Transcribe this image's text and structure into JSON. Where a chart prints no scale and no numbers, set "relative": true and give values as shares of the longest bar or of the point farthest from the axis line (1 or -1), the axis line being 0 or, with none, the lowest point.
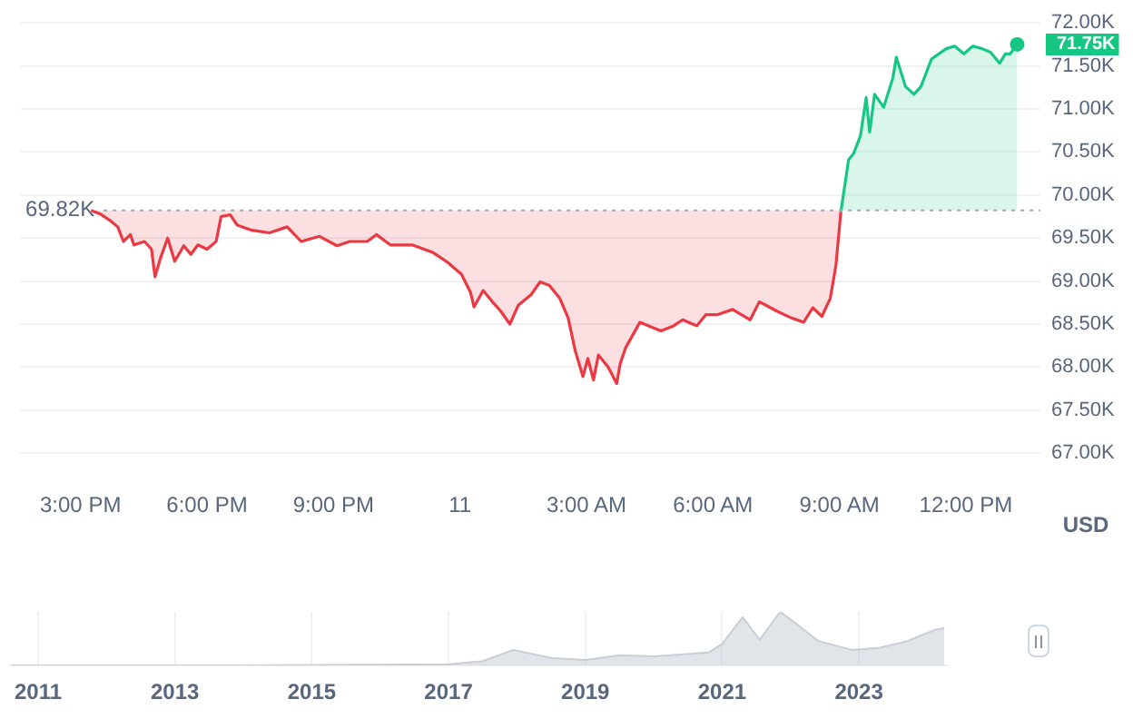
{
  "chart_data": [
    {
      "type": "line",
      "ylabel": "USD",
      "x": [
        "--03-10T15:15",
        "--03-10T15:28",
        "--03-10T15:41",
        "--03-10T15:53",
        "--03-10T16:01",
        "--03-10T16:11",
        "--03-10T16:16",
        "--03-10T16:31",
        "--03-10T16:41",
        "--03-10T16:46",
        "--03-10T16:54",
        "--03-10T17:04",
        "--03-10T17:14",
        "--03-10T17:27",
        "--03-10T17:37",
        "--03-10T17:47",
        "--03-10T18:00",
        "--03-10T18:13",
        "--03-10T18:20",
        "--03-10T18:33",
        "--03-10T18:43",
        "--03-10T19:04",
        "--03-10T19:29",
        "--03-10T19:54",
        "--03-10T20:14",
        "--03-10T20:40",
        "--03-10T21:05",
        "--03-10T21:23",
        "--03-10T21:48",
        "--03-10T22:01",
        "--03-10T22:21",
        "--03-10T22:52",
        "--03-10T23:22",
        "--03-10T23:42",
        "--03-11T00:02",
        "--03-11T00:15",
        "--03-11T00:20",
        "--03-11T00:33",
        "--03-11T00:46",
        "--03-11T00:58",
        "--03-11T01:11",
        "--03-11T01:23",
        "--03-11T01:41",
        "--03-11T01:54",
        "--03-11T02:07",
        "--03-11T02:22",
        "--03-11T02:34",
        "--03-11T02:44",
        "--03-11T02:55",
        "--03-11T03:02",
        "--03-11T03:10",
        "--03-11T03:17",
        "--03-11T03:31",
        "--03-11T03:43",
        "--03-11T03:48",
        "--03-11T03:56",
        "--03-11T04:16",
        "--03-11T04:34",
        "--03-11T04:46",
        "--03-11T05:04",
        "--03-11T05:17",
        "--03-11T05:37",
        "--03-11T05:50",
        "--03-11T06:07",
        "--03-11T06:28",
        "--03-11T06:53",
        "--03-11T07:06",
        "--03-11T07:31",
        "--03-11T07:52",
        "--03-11T08:09",
        "--03-11T08:22",
        "--03-11T08:35",
        "--03-11T08:47",
        "--03-11T08:55",
        "--03-11T09:02"
      ],
      "series": [
        {
          "type": "area",
          "color": "#ea3943",
          "values": [
            69820,
            69780,
            69710,
            69630,
            69460,
            69540,
            69420,
            69460,
            69370,
            69050,
            69270,
            69500,
            69230,
            69410,
            69310,
            69420,
            69370,
            69460,
            69750,
            69770,
            69650,
            69590,
            69560,
            69630,
            69460,
            69520,
            69410,
            69460,
            69460,
            69540,
            69420,
            69420,
            69330,
            69220,
            69080,
            68870,
            68700,
            68890,
            68760,
            68650,
            68500,
            68720,
            68840,
            68990,
            68950,
            68800,
            68570,
            68190,
            67890,
            68100,
            67850,
            68140,
            68000,
            67810,
            68040,
            68230,
            68520,
            68460,
            68420,
            68480,
            68550,
            68480,
            68610,
            68610,
            68670,
            68550,
            68760,
            68650,
            68570,
            68520,
            68690,
            68590,
            68800,
            69180,
            69800
          ]
        },
        {
          "type": "area",
          "color": "#16c784",
          "x": [
            "--03-11T09:02",
            "--03-11T09:13",
            "--03-11T09:20",
            "--03-11T09:30",
            "--03-11T09:38",
            "--03-11T09:43",
            "--03-11T09:50",
            "--03-11T10:03",
            "--03-11T10:16",
            "--03-11T10:21",
            "--03-11T10:34",
            "--03-11T10:46",
            "--03-11T10:56",
            "--03-11T11:11",
            "--03-11T11:32",
            "--03-11T11:44",
            "--03-11T11:57",
            "--03-11T12:10",
            "--03-11T12:23",
            "--03-11T12:35",
            "--03-11T12:48",
            "--03-11T12:56",
            "--03-11T13:03",
            "--03-11T13:13"
          ],
          "values": [
            69800,
            70410,
            70480,
            70690,
            71130,
            70730,
            71170,
            71020,
            71360,
            71600,
            71260,
            71170,
            71260,
            71580,
            71700,
            71730,
            71640,
            71730,
            71700,
            71660,
            71530,
            71640,
            71640,
            71750
          ]
        }
      ],
      "xlim": [
        "--03-10T13:34",
        "--03-11T13:46"
      ],
      "xticks": [
        {
          "value": "--03-10T15:00",
          "label": "3:00 PM"
        },
        {
          "value": "--03-10T18:00",
          "label": "6:00 PM"
        },
        {
          "value": "--03-10T21:00",
          "label": "9:00 PM"
        },
        {
          "value": "--03-11T00:00",
          "label": "11"
        },
        {
          "value": "--03-11T03:00",
          "label": "3:00 AM"
        },
        {
          "value": "--03-11T06:00",
          "label": "6:00 AM"
        },
        {
          "value": "--03-11T09:00",
          "label": "9:00 AM"
        },
        {
          "value": "--03-11T12:00",
          "label": "12:00 PM"
        }
      ],
      "ylim": [
        67000,
        72000
      ],
      "yticks": [
        {
          "value": 67000,
          "label": "67.00K"
        },
        {
          "value": 67500,
          "label": "67.50K"
        },
        {
          "value": 68000,
          "label": "68.00K"
        },
        {
          "value": 68500,
          "label": "68.50K"
        },
        {
          "value": 69000,
          "label": "69.00K"
        },
        {
          "value": 69500,
          "label": "69.50K"
        },
        {
          "value": 70000,
          "label": "70.00K"
        },
        {
          "value": 70500,
          "label": "70.50K"
        },
        {
          "value": 71000,
          "label": "71.00K"
        },
        {
          "value": 71500,
          "label": "71.50K"
        },
        {
          "value": 72000,
          "label": "72.00K"
        }
      ],
      "ref_lines": [
        {
          "axis": "y",
          "value": 69820,
          "label": "69.82K",
          "line_style": "dotted",
          "color": "#a1a7bb"
        }
      ],
      "annotations": [
        {
          "text": "71.75K",
          "x": "--03-11T13:13",
          "y": 71750
        }
      ],
      "grid": "y",
      "legend": false
    },
    {
      "type": "area",
      "relative": true,
      "color": "#c9ced6",
      "x": [
        2010.6,
        2013.8,
        2017.0,
        2017.5,
        2017.95,
        2018.5,
        2019.0,
        2019.5,
        2020.0,
        2020.8,
        2021.0,
        2021.3,
        2021.55,
        2021.85,
        2022.1,
        2022.4,
        2022.9,
        2023.3,
        2023.7,
        2024.1,
        2024.25
      ],
      "values": [
        0,
        0,
        0.02,
        0.08,
        0.29,
        0.14,
        0.1,
        0.19,
        0.17,
        0.24,
        0.4,
        0.9,
        0.48,
        1.0,
        0.76,
        0.46,
        0.29,
        0.33,
        0.45,
        0.66,
        0.7
      ],
      "xlim": [
        2010.57,
        2024.3
      ],
      "xticks": [
        2011,
        2013,
        2015,
        2017,
        2019,
        2021,
        2023
      ],
      "grid": "x",
      "tick_labels": "x",
      "legend": false
    }
  ]
}
